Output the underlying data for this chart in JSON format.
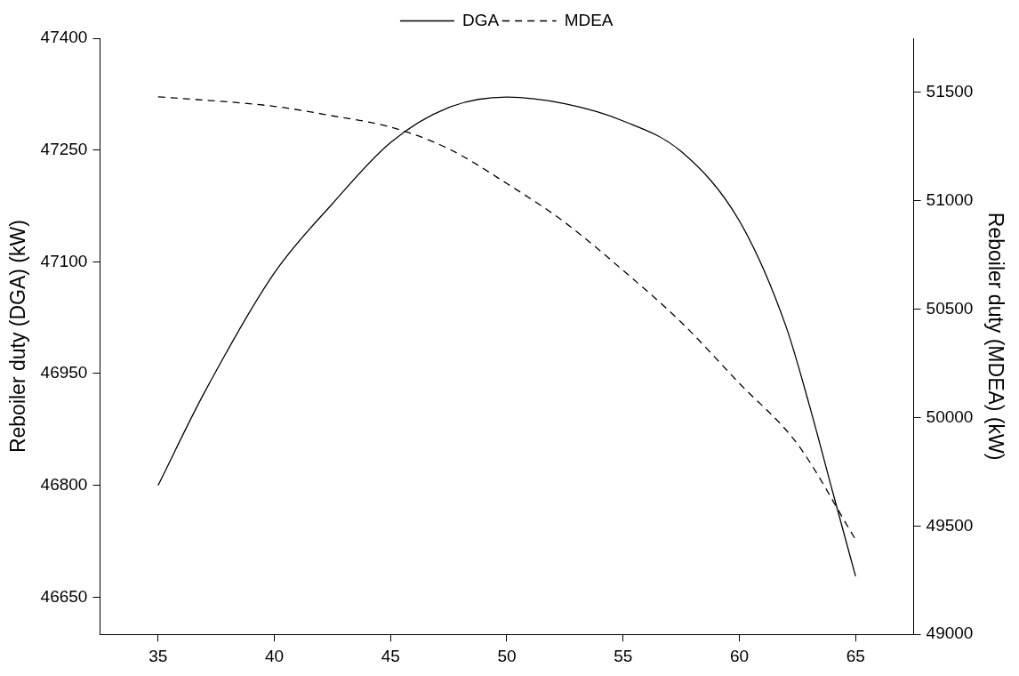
{
  "chart_data": {
    "type": "line",
    "xlabel": null,
    "ylabel": "Reboiler duty (DGA) (kW)",
    "y2label": "Reboiler duty (MDEA) (kW)",
    "x": [
      35,
      37,
      40,
      42.5,
      45,
      47.5,
      50,
      52.5,
      55,
      57.5,
      60,
      62,
      63,
      64,
      65
    ],
    "series": [
      {
        "name": "DGA",
        "color": "#000000",
        "line_style": "solid",
        "values": [
          46800,
          46925,
          47085,
          47178,
          47260,
          47307,
          47321,
          47312,
          47289,
          47248,
          47155,
          47014,
          46909,
          46793,
          46678
        ]
      },
      {
        "name": "MDEA",
        "color": "#000000",
        "line_style": "dashed",
        "axis": "y2",
        "x": [
          35,
          40,
          42.5,
          45,
          47.5,
          50,
          52.5,
          55,
          57.5,
          60,
          62.5,
          65
        ],
        "values": [
          51480,
          51436,
          51392,
          51340,
          51240,
          51080,
          50900,
          50679,
          50440,
          50158,
          49878,
          49437
        ]
      }
    ],
    "xlim": [
      32.5,
      67.5
    ],
    "xticks": [
      35,
      40,
      45,
      50,
      55,
      60,
      65
    ],
    "ylim": [
      46600,
      47400
    ],
    "yticks": [
      46650,
      46800,
      46950,
      47100,
      47250,
      47400
    ],
    "y2lim": [
      49000,
      51750
    ],
    "y2ticks": [
      49000,
      49500,
      50000,
      50500,
      51000,
      51500
    ],
    "grid": false,
    "legend": "top",
    "marker": "none"
  }
}
